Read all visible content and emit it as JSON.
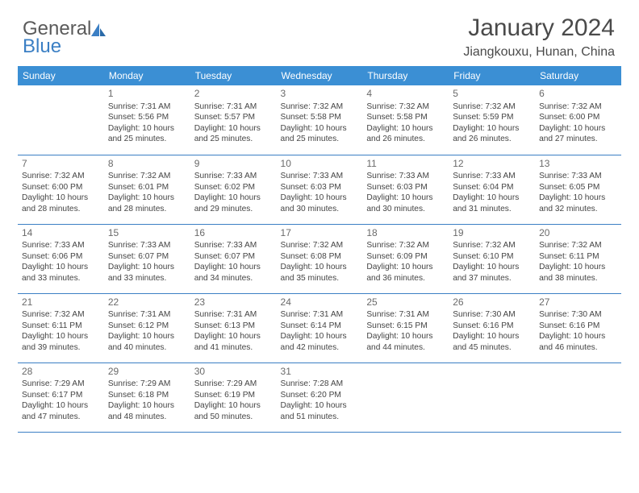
{
  "logo": {
    "text1": "General",
    "text2": "Blue"
  },
  "title": "January 2024",
  "subtitle": "Jiangkouxu, Hunan, China",
  "colors": {
    "header_bg": "#3b8fd4",
    "header_text": "#ffffff",
    "border": "#3b7fc4",
    "logo_grey": "#5a5a5a",
    "logo_blue": "#3b7fc4",
    "text": "#444444",
    "daynum": "#6a6a6a"
  },
  "daysOfWeek": [
    "Sunday",
    "Monday",
    "Tuesday",
    "Wednesday",
    "Thursday",
    "Friday",
    "Saturday"
  ],
  "weeks": [
    [
      {
        "day": "",
        "lines": []
      },
      {
        "day": "1",
        "lines": [
          "Sunrise: 7:31 AM",
          "Sunset: 5:56 PM",
          "Daylight: 10 hours",
          "and 25 minutes."
        ]
      },
      {
        "day": "2",
        "lines": [
          "Sunrise: 7:31 AM",
          "Sunset: 5:57 PM",
          "Daylight: 10 hours",
          "and 25 minutes."
        ]
      },
      {
        "day": "3",
        "lines": [
          "Sunrise: 7:32 AM",
          "Sunset: 5:58 PM",
          "Daylight: 10 hours",
          "and 25 minutes."
        ]
      },
      {
        "day": "4",
        "lines": [
          "Sunrise: 7:32 AM",
          "Sunset: 5:58 PM",
          "Daylight: 10 hours",
          "and 26 minutes."
        ]
      },
      {
        "day": "5",
        "lines": [
          "Sunrise: 7:32 AM",
          "Sunset: 5:59 PM",
          "Daylight: 10 hours",
          "and 26 minutes."
        ]
      },
      {
        "day": "6",
        "lines": [
          "Sunrise: 7:32 AM",
          "Sunset: 6:00 PM",
          "Daylight: 10 hours",
          "and 27 minutes."
        ]
      }
    ],
    [
      {
        "day": "7",
        "lines": [
          "Sunrise: 7:32 AM",
          "Sunset: 6:00 PM",
          "Daylight: 10 hours",
          "and 28 minutes."
        ]
      },
      {
        "day": "8",
        "lines": [
          "Sunrise: 7:32 AM",
          "Sunset: 6:01 PM",
          "Daylight: 10 hours",
          "and 28 minutes."
        ]
      },
      {
        "day": "9",
        "lines": [
          "Sunrise: 7:33 AM",
          "Sunset: 6:02 PM",
          "Daylight: 10 hours",
          "and 29 minutes."
        ]
      },
      {
        "day": "10",
        "lines": [
          "Sunrise: 7:33 AM",
          "Sunset: 6:03 PM",
          "Daylight: 10 hours",
          "and 30 minutes."
        ]
      },
      {
        "day": "11",
        "lines": [
          "Sunrise: 7:33 AM",
          "Sunset: 6:03 PM",
          "Daylight: 10 hours",
          "and 30 minutes."
        ]
      },
      {
        "day": "12",
        "lines": [
          "Sunrise: 7:33 AM",
          "Sunset: 6:04 PM",
          "Daylight: 10 hours",
          "and 31 minutes."
        ]
      },
      {
        "day": "13",
        "lines": [
          "Sunrise: 7:33 AM",
          "Sunset: 6:05 PM",
          "Daylight: 10 hours",
          "and 32 minutes."
        ]
      }
    ],
    [
      {
        "day": "14",
        "lines": [
          "Sunrise: 7:33 AM",
          "Sunset: 6:06 PM",
          "Daylight: 10 hours",
          "and 33 minutes."
        ]
      },
      {
        "day": "15",
        "lines": [
          "Sunrise: 7:33 AM",
          "Sunset: 6:07 PM",
          "Daylight: 10 hours",
          "and 33 minutes."
        ]
      },
      {
        "day": "16",
        "lines": [
          "Sunrise: 7:33 AM",
          "Sunset: 6:07 PM",
          "Daylight: 10 hours",
          "and 34 minutes."
        ]
      },
      {
        "day": "17",
        "lines": [
          "Sunrise: 7:32 AM",
          "Sunset: 6:08 PM",
          "Daylight: 10 hours",
          "and 35 minutes."
        ]
      },
      {
        "day": "18",
        "lines": [
          "Sunrise: 7:32 AM",
          "Sunset: 6:09 PM",
          "Daylight: 10 hours",
          "and 36 minutes."
        ]
      },
      {
        "day": "19",
        "lines": [
          "Sunrise: 7:32 AM",
          "Sunset: 6:10 PM",
          "Daylight: 10 hours",
          "and 37 minutes."
        ]
      },
      {
        "day": "20",
        "lines": [
          "Sunrise: 7:32 AM",
          "Sunset: 6:11 PM",
          "Daylight: 10 hours",
          "and 38 minutes."
        ]
      }
    ],
    [
      {
        "day": "21",
        "lines": [
          "Sunrise: 7:32 AM",
          "Sunset: 6:11 PM",
          "Daylight: 10 hours",
          "and 39 minutes."
        ]
      },
      {
        "day": "22",
        "lines": [
          "Sunrise: 7:31 AM",
          "Sunset: 6:12 PM",
          "Daylight: 10 hours",
          "and 40 minutes."
        ]
      },
      {
        "day": "23",
        "lines": [
          "Sunrise: 7:31 AM",
          "Sunset: 6:13 PM",
          "Daylight: 10 hours",
          "and 41 minutes."
        ]
      },
      {
        "day": "24",
        "lines": [
          "Sunrise: 7:31 AM",
          "Sunset: 6:14 PM",
          "Daylight: 10 hours",
          "and 42 minutes."
        ]
      },
      {
        "day": "25",
        "lines": [
          "Sunrise: 7:31 AM",
          "Sunset: 6:15 PM",
          "Daylight: 10 hours",
          "and 44 minutes."
        ]
      },
      {
        "day": "26",
        "lines": [
          "Sunrise: 7:30 AM",
          "Sunset: 6:16 PM",
          "Daylight: 10 hours",
          "and 45 minutes."
        ]
      },
      {
        "day": "27",
        "lines": [
          "Sunrise: 7:30 AM",
          "Sunset: 6:16 PM",
          "Daylight: 10 hours",
          "and 46 minutes."
        ]
      }
    ],
    [
      {
        "day": "28",
        "lines": [
          "Sunrise: 7:29 AM",
          "Sunset: 6:17 PM",
          "Daylight: 10 hours",
          "and 47 minutes."
        ]
      },
      {
        "day": "29",
        "lines": [
          "Sunrise: 7:29 AM",
          "Sunset: 6:18 PM",
          "Daylight: 10 hours",
          "and 48 minutes."
        ]
      },
      {
        "day": "30",
        "lines": [
          "Sunrise: 7:29 AM",
          "Sunset: 6:19 PM",
          "Daylight: 10 hours",
          "and 50 minutes."
        ]
      },
      {
        "day": "31",
        "lines": [
          "Sunrise: 7:28 AM",
          "Sunset: 6:20 PM",
          "Daylight: 10 hours",
          "and 51 minutes."
        ]
      },
      {
        "day": "",
        "lines": []
      },
      {
        "day": "",
        "lines": []
      },
      {
        "day": "",
        "lines": []
      }
    ]
  ]
}
